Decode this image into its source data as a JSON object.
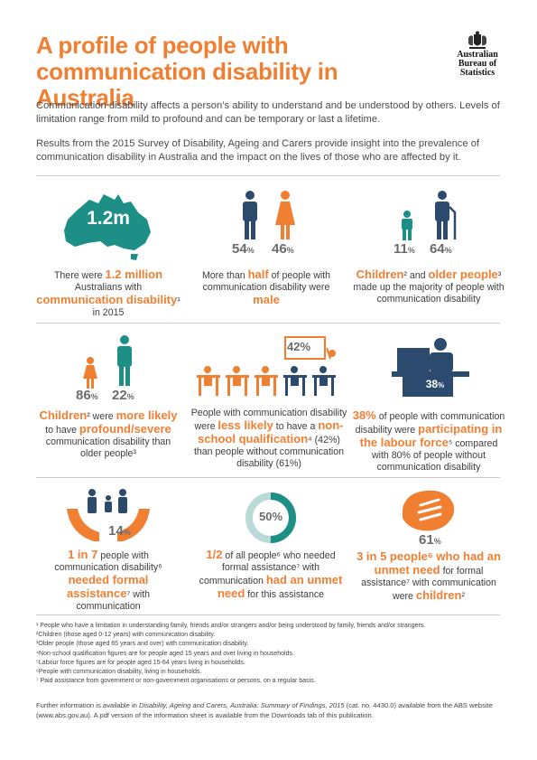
{
  "header": {
    "title": "A profile of people with communication disability in Australia",
    "logo_lines": [
      "Australian",
      "Bureau of",
      "Statistics"
    ]
  },
  "intro": {
    "p1": "Communication disability affects a person’s ability to understand and be understood by others. Levels of limitation range from mild to profound and can be temporary or last a lifetime.",
    "p2": "Results from the 2015 Survey of Disability, Ageing and Carers provide insight into the prevalence of communication disability in Australia and the impact on the lives of those who are affected by it."
  },
  "row1": {
    "map_label": "1.2m",
    "c1": [
      "There were ",
      "1.2 million",
      " Australians with ",
      "communication disability",
      "¹ in 2015"
    ],
    "male_pct": "54",
    "female_pct": "46",
    "c2": [
      "More than ",
      "half",
      " of people with communication disability were ",
      "male"
    ],
    "child_pct": "11",
    "older_pct": "64",
    "c3": [
      "Children",
      "² and ",
      "older people",
      "³ made up the majority of people with communication disability"
    ]
  },
  "row2": {
    "child_pct": "86",
    "older_pct": "22",
    "c1": [
      "Children",
      "² were ",
      "more likely",
      " to have ",
      "profound/severe",
      " communication disability than older people³"
    ],
    "qual_pct": "42%",
    "c2": [
      "People with communication disability were ",
      "less likely",
      " to have a ",
      "non-school qualification",
      "⁴ (42%) than people without communication disability (61%)"
    ],
    "lf_pct": "38",
    "c3": [
      "38%",
      " of people with communication disability were ",
      "participating in the labour force",
      "⁵ compared with 80% of people without communication disability"
    ]
  },
  "row3": {
    "hands_pct": "14",
    "c1": [
      "1 in 7",
      " people with communication disability⁶ ",
      "needed formal assistance",
      "⁷ with communication"
    ],
    "donut_pct": "50%",
    "donut_fraction": 0.5,
    "c2": [
      "1/2",
      " of all people⁶ who needed formal assistance⁷ with communication ",
      "had an unmet need",
      " for this assistance"
    ],
    "hand_pct": "61",
    "c3": [
      "3 in 5 people⁶ who had an unmet need",
      " for formal assistance⁷ with communication were ",
      "children",
      "²"
    ]
  },
  "footnotes": [
    "¹ People who have a limitation in understanding family, friends and/or strangers and/or being understood by family, friends and/or strangers.",
    "²Children (those aged 0-12 years) with communication disability.",
    "³Older people (those aged 65 years and over) with communication disability.",
    "⁴Non-school qualification figures are for people aged 15 years and over living in households.",
    "⁵Labour force figures are for people aged 15-64 years living in households.",
    "⁶People with communication disability, living in households.",
    "⁷ Paid assistance from government or non-government organisations or persons, on a regular basis."
  ],
  "further": {
    "a": "Further information is available in ",
    "b": "Disability, Ageing and Carers, Australia: Summary of Findings, 2015",
    "c": " (cat. no. 4430.0) available from the ABS website (www.abs.gov.au). A pdf version of the information sheet is available from the Downloads tab of this publication."
  },
  "colors": {
    "orange": "#f07f32",
    "teal": "#1d8f87",
    "navy": "#2c4a6e",
    "gray": "#8a8a8a"
  }
}
